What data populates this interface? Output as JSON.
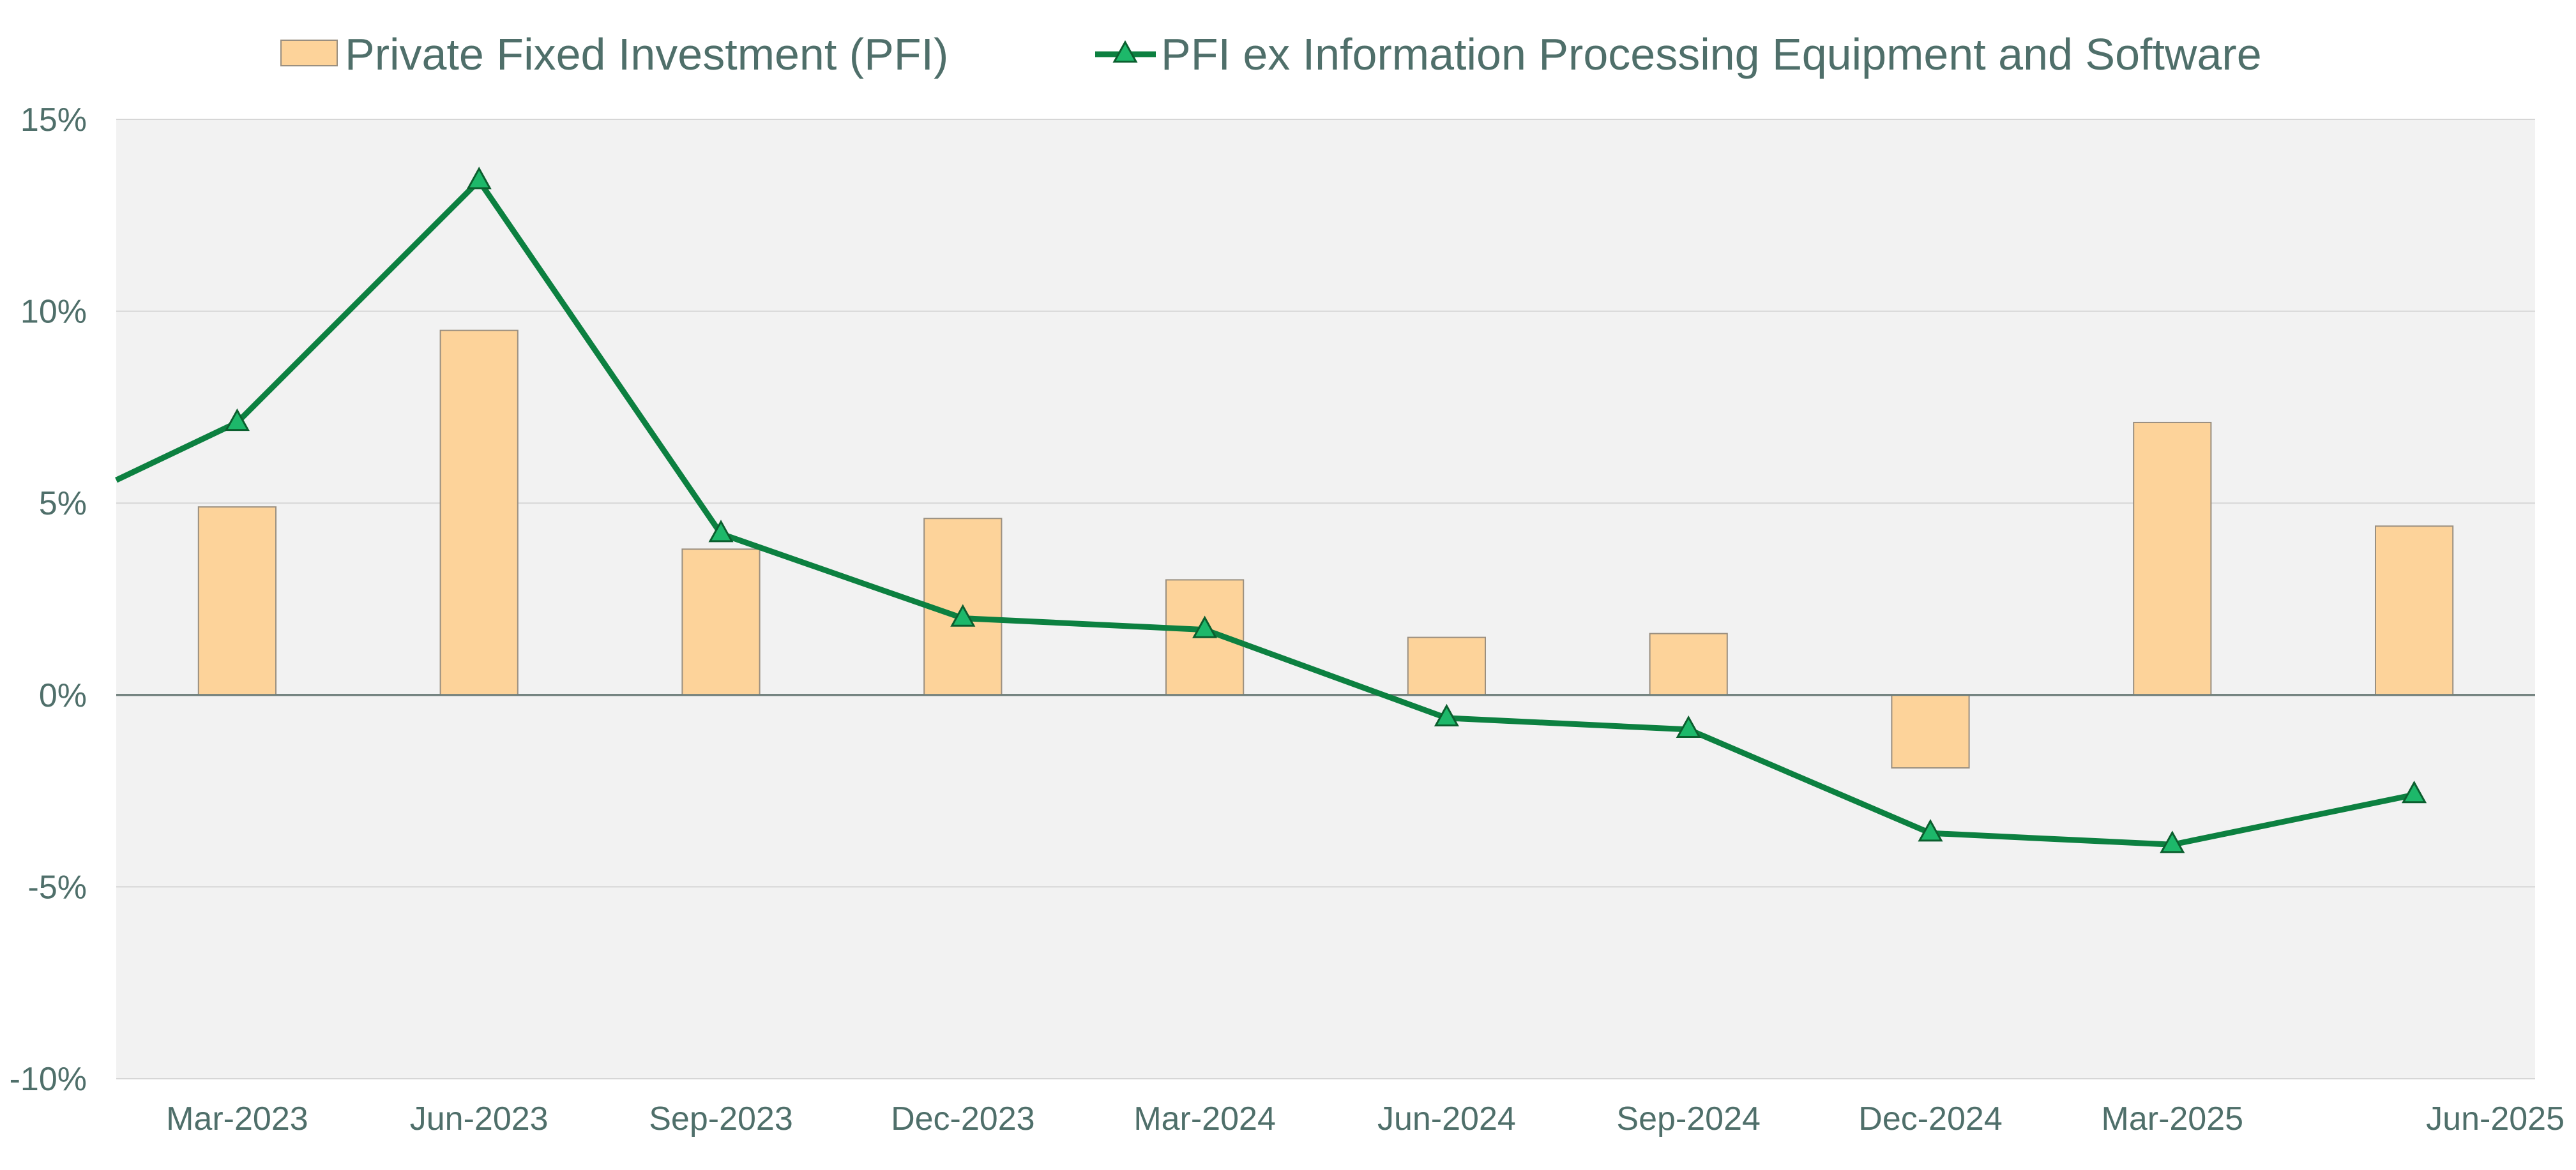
{
  "chart_data": {
    "type": "bar+line",
    "categories": [
      "Mar-2023",
      "Jun-2023",
      "Sep-2023",
      "Dec-2023",
      "Mar-2024",
      "Jun-2024",
      "Sep-2024",
      "Dec-2024",
      "Mar-2025",
      "Jun-2025"
    ],
    "ylim": [
      -10,
      15
    ],
    "yticks": [
      15,
      10,
      5,
      0,
      -5,
      -10
    ],
    "ytick_labels": [
      "15%",
      "10%",
      "5%",
      "0%",
      "-5%",
      "-10%"
    ],
    "legend_position": "top-center",
    "grid": true,
    "series": [
      {
        "name": "Private Fixed Investment (PFI)",
        "type": "bar",
        "values": [
          4.9,
          9.5,
          3.8,
          4.6,
          3.0,
          1.5,
          1.6,
          -1.9,
          7.1,
          4.4
        ]
      },
      {
        "name": "PFI ex Information Processing Equipment and Software",
        "type": "line",
        "marker": "triangle",
        "start_value": 5.6,
        "values": [
          7.1,
          13.4,
          4.2,
          2.0,
          1.7,
          -0.6,
          -0.9,
          -3.6,
          -3.9,
          -2.6
        ]
      }
    ],
    "colors": {
      "bar_fill": "#FDD39A",
      "bar_stroke": "#9A8F80",
      "line": "#0C8040",
      "marker_fill": "#1DB86A",
      "marker_stroke": "#0B5E2E",
      "text": "#4F6F6A",
      "plot_bg": "#F2F2F2",
      "grid": "#D6D6D6",
      "zero_line": "#6E7E7A"
    }
  }
}
